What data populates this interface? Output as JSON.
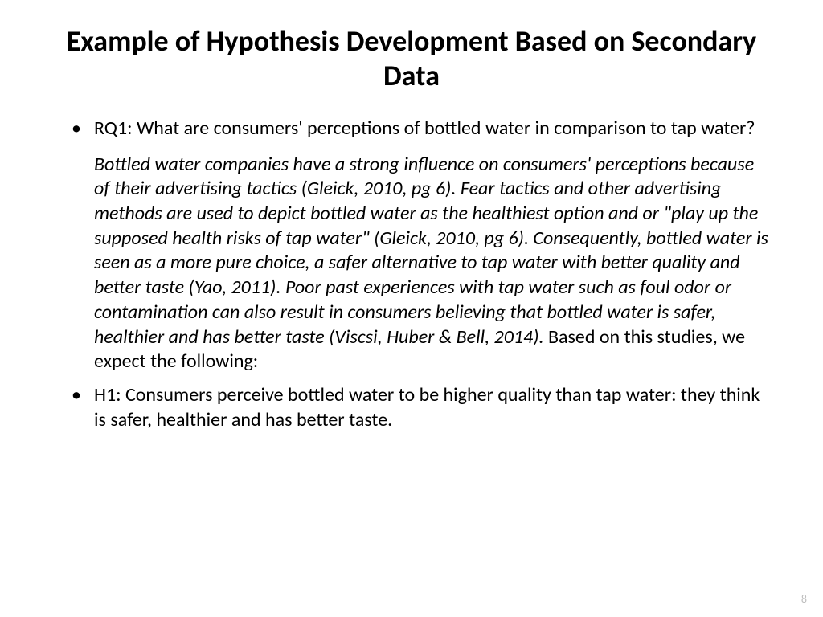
{
  "slide": {
    "title": "Example of Hypothesis Development Based on Secondary Data",
    "rq1": "RQ1: What are consumers' perceptions of bottled water in comparison to tap water?",
    "body_italic": "Bottled water companies have a strong influence on consumers' perceptions because of their advertising tactics (Gleick, 2010, pg 6). Fear tactics and other advertising methods are used to depict bottled water as the healthiest option and or \"play up the supposed health risks of tap water\" (Gleick, 2010, pg 6). Consequently, bottled water is seen as a more pure choice, a safer alternative to tap water with better quality and better taste (Yao, 2011). Poor past experiences with tap water such as foul odor or contamination can also result in consumers believing that bottled water is safer, healthier and has better taste (Viscsi, Huber & Bell, 2014). ",
    "body_plain": "Based on this studies, we expect the following:",
    "h1": "H1: Consumers perceive bottled water to be higher quality than tap water: they think is safer, healthier and has better taste.",
    "page_number": "8"
  },
  "styling": {
    "background_color": "#ffffff",
    "text_color": "#000000",
    "page_number_color": "#bfbfbf",
    "title_fontsize": 36,
    "body_fontsize": 24,
    "page_number_fontsize": 14,
    "font_family": "Calibri"
  }
}
